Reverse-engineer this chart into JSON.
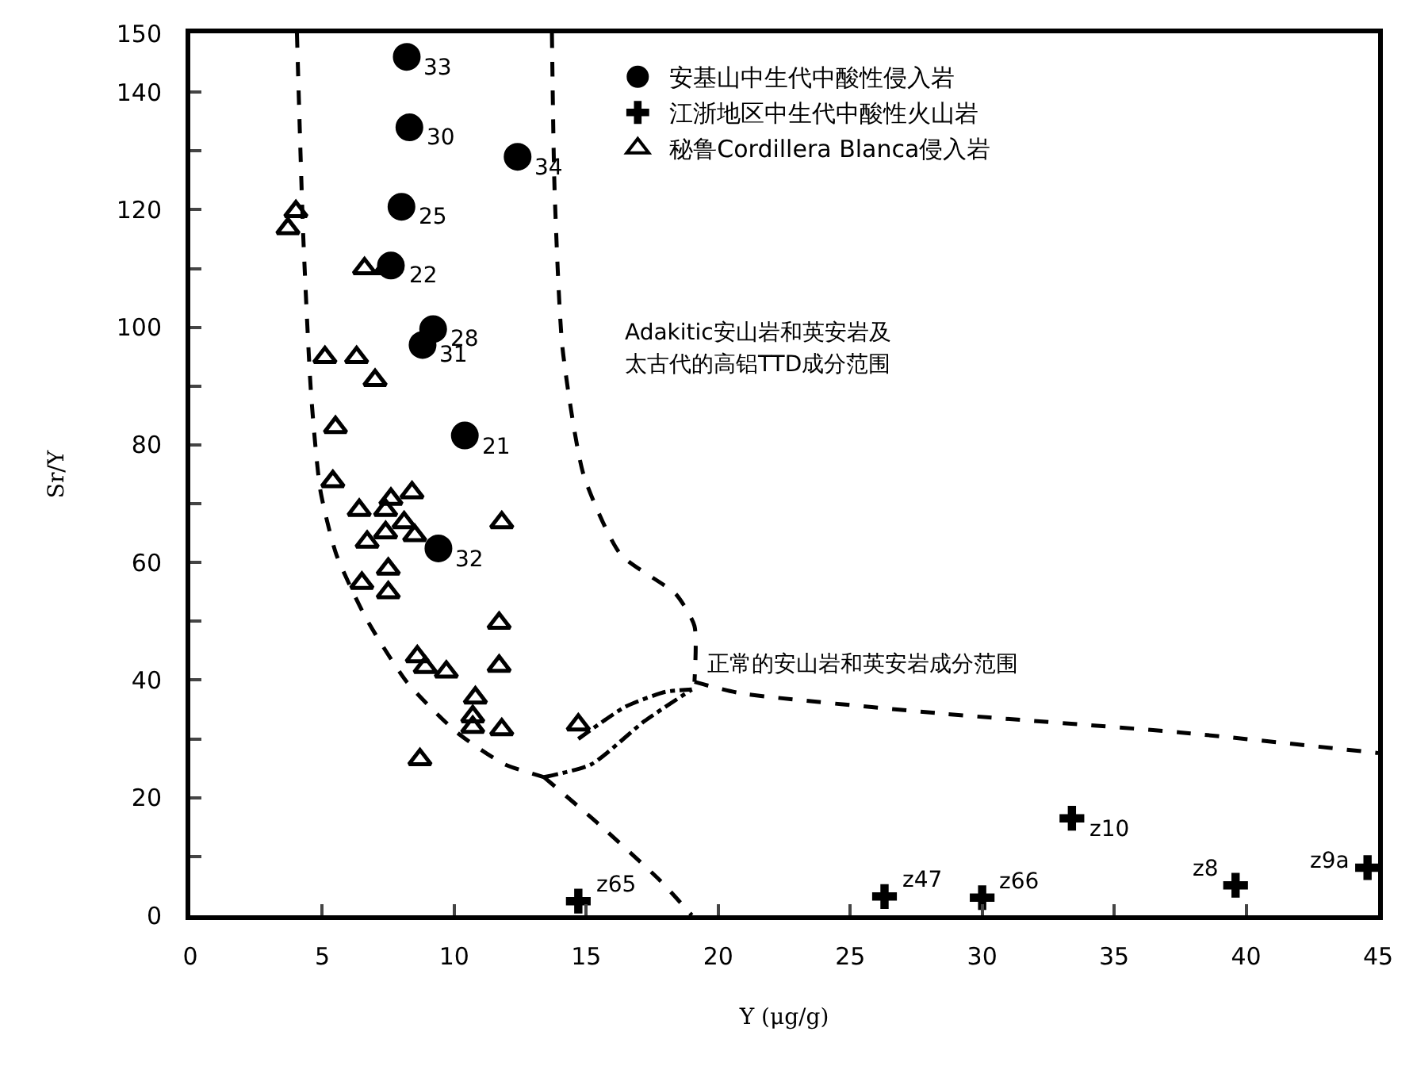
{
  "chart_data": {
    "type": "scatter",
    "xlabel": "Y (μg/g)",
    "ylabel": "Sr/Y",
    "xlim": [
      0,
      45
    ],
    "ylim": [
      0,
      150
    ],
    "xticks": [
      0,
      5,
      10,
      15,
      20,
      25,
      30,
      35,
      40,
      45
    ],
    "yticks": [
      0,
      {
        "value": 10,
        "label": null
      },
      20,
      {
        "value": 30,
        "label": null
      },
      40,
      {
        "value": 50,
        "label": null
      },
      60,
      {
        "value": 70,
        "label": null
      },
      80,
      {
        "value": 90,
        "label": null
      },
      100,
      {
        "value": 110,
        "label": null
      },
      120,
      {
        "value": 130,
        "label": null
      },
      140,
      150
    ],
    "legend": "top",
    "series": [
      {
        "name": "安基山中生代中酸性侵入岩",
        "color": "#000000",
        "marker": "circle",
        "x": [
          8.2,
          8.3,
          12.4,
          8.0,
          7.6,
          9.2,
          8.8,
          10.4,
          9.4
        ],
        "values": [
          146,
          134,
          129,
          120.5,
          110.5,
          99.7,
          97,
          81.6,
          62.4
        ]
      },
      {
        "name": "江浙地区中生代中酸性火山岩",
        "color": "#000000",
        "marker": "cross",
        "x": [
          14.7,
          26.3,
          30.0,
          33.4,
          39.6,
          44.6
        ],
        "values": [
          2.4,
          3.2,
          3,
          16.5,
          5.1,
          8.1
        ]
      },
      {
        "name": "秘鲁Cordillera Blanca侵入岩",
        "color": "#000000",
        "marker": "triangle",
        "x": [
          4.0,
          3.7,
          6.6,
          7.4,
          5.1,
          6.3,
          7.0,
          5.5,
          5.4,
          7.6,
          6.4,
          7.4,
          8.4,
          8.1,
          6.7,
          7.4,
          8.5,
          11.8,
          7.5,
          6.5,
          7.5,
          8.6,
          8.9,
          9.7,
          11.7,
          11.7,
          10.8,
          10.7,
          10.7,
          11.8,
          14.7,
          8.7
        ],
        "values": [
          119.7,
          116.8,
          110,
          110,
          94.9,
          94.9,
          91,
          83,
          73.8,
          70.8,
          68.9,
          68.9,
          71.9,
          66.8,
          63.5,
          65.1,
          64.6,
          66.8,
          58.9,
          56.5,
          54.9,
          44,
          42.2,
          41.4,
          49.7,
          42.4,
          37,
          33.8,
          32,
          31.6,
          32.4,
          26.5
        ]
      },
      {
        "type": "line",
        "color": "#000000",
        "marker": "none",
        "line_style": "dashed",
        "x": [
          4.04,
          4.28,
          4.58,
          4.93,
          5.53,
          6.66,
          8.2,
          10.1,
          11.9,
          13.4
        ],
        "values": [
          150,
          115.4,
          88.4,
          72.2,
          61.4,
          50.5,
          39.7,
          31.1,
          25.7,
          23.5
        ]
      },
      {
        "type": "line",
        "color": "#000000",
        "marker": "none",
        "line_style": "dotted",
        "x": [
          13.4,
          15.2,
          17.2,
          19.0
        ],
        "values": [
          23.5,
          25.7,
          33,
          38.4
        ]
      },
      {
        "type": "line",
        "color": "#000000",
        "marker": "none",
        "line_style": "dotted",
        "x": [
          14.7,
          16.5,
          18.0,
          19.0
        ],
        "values": [
          30,
          35.5,
          38,
          38.4
        ]
      },
      {
        "type": "line",
        "color": "#000000",
        "marker": "none",
        "line_style": "dashed",
        "x": [
          13.7,
          13.8,
          14.1,
          14.9,
          16.3,
          18.4,
          19.1,
          19.1
        ],
        "values": [
          150,
          123.5,
          96.5,
          74.9,
          61.4,
          54.6,
          49.2,
          39.7
        ]
      },
      {
        "type": "line",
        "color": "#000000",
        "marker": "none",
        "line_style": "dashed",
        "x": [
          19.1,
          20.8,
          28.5,
          37.5,
          45
        ],
        "values": [
          39.7,
          37.8,
          34.3,
          31.1,
          27.6
        ]
      },
      {
        "type": "line",
        "color": "#000000",
        "marker": "none",
        "line_style": "dashed",
        "x": [
          13.4,
          15.5,
          17.8,
          19.0
        ],
        "values": [
          23.5,
          15.4,
          5.9,
          0
        ]
      }
    ],
    "annotations": [
      {
        "text": "33",
        "x": 8.2,
        "y": 146
      },
      {
        "text": "30",
        "x": 8.3,
        "y": 134
      },
      {
        "text": "34",
        "x": 12.4,
        "y": 129
      },
      {
        "text": "25",
        "x": 8.0,
        "y": 120.5
      },
      {
        "text": "22",
        "x": 7.6,
        "y": 110.5
      },
      {
        "text": "28",
        "x": 9.2,
        "y": 99.7
      },
      {
        "text": "31",
        "x": 8.8,
        "y": 97
      },
      {
        "text": "21",
        "x": 10.4,
        "y": 81.6
      },
      {
        "text": "32",
        "x": 9.4,
        "y": 62.4
      },
      {
        "text": "z65",
        "x": 14.7,
        "y": 2.4
      },
      {
        "text": "z47",
        "x": 26.3,
        "y": 3.2
      },
      {
        "text": "z66",
        "x": 30.0,
        "y": 3
      },
      {
        "text": "z10",
        "x": 33.4,
        "y": 16.5
      },
      {
        "text": "z8",
        "x": 39.6,
        "y": 5.1
      },
      {
        "text": "z9a",
        "x": 44.6,
        "y": 8.1
      },
      "Adakitic安山岩和英安岩及",
      "太古代的高铝TTD成分范围",
      "正常的安山岩和英安岩成分范围"
    ]
  }
}
